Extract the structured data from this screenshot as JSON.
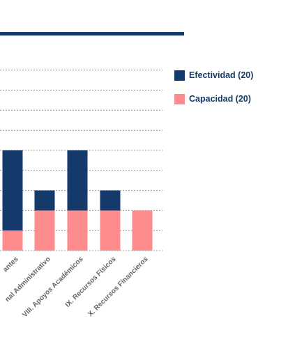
{
  "colors": {
    "rule": "#143a6b",
    "grid": "#9a9a9a"
  },
  "chart_data": {
    "type": "bar",
    "stacked": true,
    "categories": [
      "…antes",
      "…nal Administrativo",
      "VIII.  Apoyos Académicos",
      "IX.  Recursos Físicos",
      "X.  Recursos Financieros"
    ],
    "series": [
      {
        "name": "Capacidad (20)",
        "color": "#ff8c8c",
        "values": [
          1,
          2,
          2,
          2,
          2
        ]
      },
      {
        "name": "Efectividad (20)",
        "color": "#143a6b",
        "values": [
          4,
          1,
          3,
          1,
          0
        ]
      }
    ],
    "ylim": [
      0,
      9
    ],
    "grid": true,
    "legend_position": "right"
  }
}
